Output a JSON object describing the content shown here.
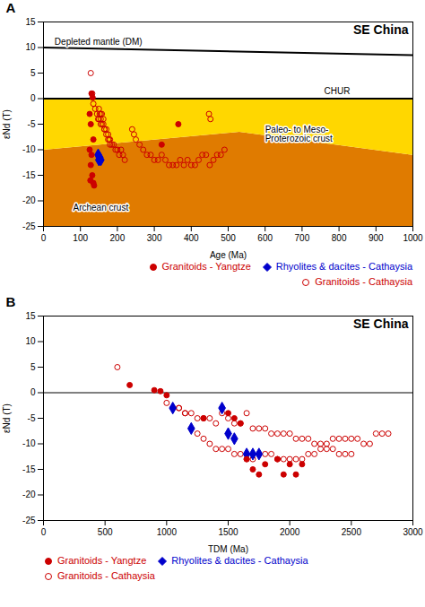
{
  "chart_data": [
    {
      "type": "scatter",
      "title": "SE China",
      "xlabel": "Age (Ma)",
      "ylabel": "εNd (T)",
      "xlim": [
        0,
        1000
      ],
      "ylim": [
        -25,
        15
      ],
      "xticks": [
        0,
        100,
        200,
        300,
        400,
        500,
        600,
        700,
        800,
        900,
        1000
      ],
      "yticks": [
        -25,
        -20,
        -15,
        -10,
        -5,
        0,
        5,
        10,
        15
      ],
      "legend": "lower right",
      "regions": [
        {
          "color": "#E07B00",
          "polygon": [
            [
              0,
              -10
            ],
            [
              530,
              -6.5
            ],
            [
              1000,
              -11
            ],
            [
              1000,
              -25
            ],
            [
              0,
              -25
            ]
          ]
        },
        {
          "color": "#FFD700",
          "polygon": [
            [
              0,
              0
            ],
            [
              1000,
              0
            ],
            [
              1000,
              -11
            ],
            [
              530,
              -6.5
            ],
            [
              0,
              -10
            ]
          ]
        }
      ],
      "lines": [
        {
          "color": "#000000",
          "y": 0
        },
        {
          "color": "#000000",
          "x": [
            0,
            1000
          ],
          "values": [
            10.0,
            8.5
          ]
        }
      ],
      "series": [
        {
          "name": "Granitoids - Yangtze",
          "type": "scatter",
          "marker": "circle",
          "color": "#CC0000",
          "x": [
            130,
            133,
            125,
            128,
            135,
            125,
            130,
            128,
            132,
            127,
            135,
            137,
            320,
            365
          ],
          "values": [
            1.0,
            0.2,
            -3,
            -5,
            -8,
            -10,
            -11,
            -13,
            -15,
            -16,
            -16.5,
            -17,
            -9,
            -5
          ]
        },
        {
          "name": "Rhyolites & dacites - Cathaysia",
          "type": "scatter",
          "marker": "diamond",
          "color": "#0000CC",
          "x": [
            148,
            150,
            152,
            155
          ],
          "values": [
            -11,
            -12,
            -11.5,
            -12
          ]
        },
        {
          "name": "Granitoids - Cathaysia",
          "type": "scatter",
          "marker": "open_circle",
          "color": "#CC0000",
          "x": [
            128,
            132,
            135,
            140,
            145,
            148,
            152,
            155,
            158,
            162,
            165,
            170,
            175,
            178,
            180,
            185,
            190,
            195,
            200,
            205,
            210,
            215,
            220,
            150,
            155,
            158,
            162,
            165,
            170,
            175,
            180,
            240,
            245,
            250,
            260,
            270,
            280,
            290,
            300,
            310,
            320,
            330,
            340,
            350,
            360,
            370,
            380,
            390,
            400,
            410,
            420,
            430,
            440,
            450,
            460,
            470,
            480,
            490,
            150,
            155,
            448,
            452
          ],
          "values": [
            5,
            1,
            -1,
            -2,
            -3,
            -4,
            -3,
            -4,
            -5,
            -5,
            -6,
            -6,
            -7,
            -8,
            -8,
            -9,
            -9,
            -10,
            -10,
            -11,
            -10,
            -11,
            -12,
            -2,
            -3,
            -3,
            -4,
            -6,
            -7,
            -8,
            -9,
            -6,
            -7,
            -8,
            -9,
            -10,
            -11,
            -11,
            -12,
            -12,
            -11,
            -12,
            -13,
            -13,
            -13,
            -12,
            -13,
            -12,
            -13,
            -13,
            -12,
            -11,
            -11,
            -13,
            -12,
            -11,
            -11,
            -10,
            -4,
            -5,
            -3,
            -4
          ]
        }
      ],
      "annotations": [
        {
          "text": "CHUR",
          "x": 760,
          "y": 0.8
        },
        {
          "text": "Depleted mantle (DM)",
          "x": 30,
          "y": 10.5
        },
        {
          "text": "Archean crust",
          "x": 80,
          "y": -22
        },
        {
          "text": "Paleo- to Meso-\nProterozoic crust",
          "x": 600,
          "y": -8.5
        },
        {
          "text": "A"
        }
      ]
    },
    {
      "type": "scatter",
      "title": "SE China",
      "xlabel": "TDM (Ma)",
      "ylabel": "εNd (T)",
      "xlim": [
        0,
        3000
      ],
      "ylim": [
        -25,
        15
      ],
      "xticks": [
        0,
        500,
        1000,
        1500,
        2000,
        2500,
        3000
      ],
      "yticks": [
        -25,
        -20,
        -15,
        -10,
        -5,
        0,
        5,
        10,
        15
      ],
      "legend": "lower left",
      "lines": [
        {
          "color": "#808080",
          "y": 0
        }
      ],
      "series": [
        {
          "name": "Granitoids - Yangtze",
          "type": "scatter",
          "marker": "circle",
          "color": "#CC0000",
          "x": [
            700,
            900,
            950,
            1000,
            1300,
            1500,
            1550,
            1600,
            1650,
            1700,
            1750,
            1800,
            1900,
            1950,
            2000,
            2050,
            2100
          ],
          "values": [
            1.5,
            0.5,
            0.3,
            -0.5,
            -5,
            -4,
            -5,
            -6,
            -13,
            -15,
            -16,
            -14,
            -13,
            -16,
            -14,
            -16,
            -14
          ]
        },
        {
          "name": "Rhyolites & dacites - Cathaysia",
          "type": "scatter",
          "marker": "diamond",
          "color": "#0000CC",
          "x": [
            1050,
            1200,
            1450,
            1500,
            1550,
            1650,
            1700,
            1750
          ],
          "values": [
            -3,
            -7,
            -3,
            -8,
            -9,
            -12,
            -12,
            -12
          ]
        },
        {
          "name": "Granitoids - Cathaysia",
          "type": "scatter",
          "marker": "open_circle",
          "color": "#CC0000",
          "x": [
            600,
            1000,
            1050,
            1100,
            1150,
            1200,
            1250,
            1300,
            1350,
            1400,
            1450,
            1500,
            1550,
            1600,
            1650,
            1700,
            1750,
            1800,
            1850,
            1900,
            1950,
            2000,
            2050,
            2100,
            2150,
            2200,
            2250,
            2300,
            2350,
            2400,
            2450,
            2500,
            2550,
            2600,
            2650,
            2700,
            2750,
            2800,
            1100,
            1150,
            1200,
            1250,
            1300,
            1350,
            1400,
            1450,
            1500,
            1550,
            1600,
            1650,
            1700,
            1750,
            1800,
            1850,
            1900,
            1950,
            2000,
            2050,
            2100,
            2150,
            2200,
            2250,
            2300,
            2350,
            2400,
            2450,
            2500
          ],
          "values": [
            5,
            -2,
            -3,
            -3,
            -4,
            -4,
            -5,
            -5,
            -5,
            -6,
            -4,
            -5,
            -6,
            -6,
            -4,
            -7,
            -7,
            -7,
            -8,
            -8,
            -8,
            -8,
            -9,
            -9,
            -9,
            -10,
            -10,
            -10,
            -9,
            -9,
            -9,
            -9,
            -9,
            -10,
            -10,
            -8,
            -8,
            -8,
            -3,
            -4,
            -7,
            -8,
            -9,
            -10,
            -11,
            -11,
            -11,
            -12,
            -12,
            -13,
            -13,
            -12,
            -12,
            -12,
            -13,
            -13,
            -13,
            -13,
            -13,
            -12,
            -12,
            -11,
            -11,
            -11,
            -12,
            -12,
            -12
          ]
        }
      ],
      "annotations": [
        {
          "text": "B"
        }
      ]
    }
  ]
}
